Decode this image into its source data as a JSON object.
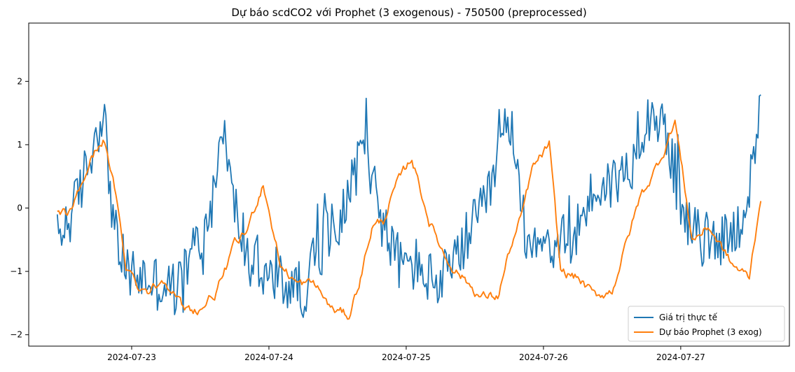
{
  "chart_data": {
    "type": "line",
    "title": "Dự báo scdCO2 với Prophet (3 exogenous) - 750500 (preprocessed)",
    "xlabel": "",
    "ylabel": "",
    "x_ticks": [
      "2024-07-23",
      "2024-07-24",
      "2024-07-25",
      "2024-07-26",
      "2024-07-27"
    ],
    "x_range": [
      "2024-07-22T11:00",
      "2024-07-27T14:00"
    ],
    "x_domain": [
      "2024-07-22T06:00",
      "2024-07-27T19:00"
    ],
    "y_ticks": [
      -2,
      -1,
      0,
      1,
      2
    ],
    "ylim": [
      -2.18,
      2.92
    ],
    "grid": false,
    "legend_position": "lower right",
    "series": [
      {
        "name": "Giá trị thực tế",
        "color": "#1f77b4",
        "noise_amplitude": 0.45,
        "x": [
          "2024-07-22T11:00",
          "2024-07-22T14:00",
          "2024-07-22T17:00",
          "2024-07-22T19:00",
          "2024-07-22T21:00",
          "2024-07-22T23:00",
          "2024-07-23T02:00",
          "2024-07-23T05:00",
          "2024-07-23T08:00",
          "2024-07-23T11:00",
          "2024-07-23T13:00",
          "2024-07-23T16:00",
          "2024-07-23T18:00",
          "2024-07-23T21:00",
          "2024-07-24T00:00",
          "2024-07-24T03:00",
          "2024-07-24T06:00",
          "2024-07-24T09:00",
          "2024-07-24T12:00",
          "2024-07-24T15:00",
          "2024-07-24T17:00",
          "2024-07-24T20:00",
          "2024-07-24T23:00",
          "2024-07-25T02:00",
          "2024-07-25T05:00",
          "2024-07-25T08:00",
          "2024-07-25T11:00",
          "2024-07-25T14:00",
          "2024-07-25T16:00",
          "2024-07-25T18:00",
          "2024-07-25T21:00",
          "2024-07-26T00:00",
          "2024-07-26T03:00",
          "2024-07-26T06:00",
          "2024-07-26T09:00",
          "2024-07-26T12:00",
          "2024-07-26T15:00",
          "2024-07-26T17:00",
          "2024-07-26T19:00",
          "2024-07-26T22:00",
          "2024-07-27T01:00",
          "2024-07-27T04:00",
          "2024-07-27T07:00",
          "2024-07-27T10:00",
          "2024-07-27T13:00",
          "2024-07-27T14:00"
        ],
        "y": [
          -0.5,
          0.0,
          0.9,
          1.6,
          -0.4,
          -1.0,
          -1.1,
          -1.2,
          -1.3,
          -0.6,
          -0.4,
          1.2,
          0.0,
          -0.9,
          -1.1,
          -1.2,
          -1.3,
          -0.6,
          -0.2,
          0.5,
          1.0,
          -0.3,
          -0.9,
          -0.9,
          -1.2,
          -1.0,
          -0.4,
          0.0,
          0.8,
          1.4,
          -0.4,
          -0.5,
          -0.6,
          -0.3,
          0.3,
          0.4,
          0.6,
          1.2,
          1.6,
          1.0,
          -0.3,
          -0.5,
          -0.5,
          -0.3,
          0.6,
          1.7
        ]
      },
      {
        "name": "Dự báo Prophet (3 exog)",
        "color": "#ff7f0e",
        "noise_amplitude": 0.06,
        "x": [
          "2024-07-22T11:00",
          "2024-07-22T13:00",
          "2024-07-22T15:00",
          "2024-07-22T17:00",
          "2024-07-22T19:00",
          "2024-07-22T21:00",
          "2024-07-22T23:00",
          "2024-07-23T01:00",
          "2024-07-23T03:00",
          "2024-07-23T06:00",
          "2024-07-23T09:00",
          "2024-07-23T12:00",
          "2024-07-23T15:00",
          "2024-07-23T18:00",
          "2024-07-23T20:00",
          "2024-07-23T23:00",
          "2024-07-24T02:00",
          "2024-07-24T05:00",
          "2024-07-24T08:00",
          "2024-07-24T11:00",
          "2024-07-24T14:00",
          "2024-07-24T16:00",
          "2024-07-24T18:00",
          "2024-07-24T20:00",
          "2024-07-24T22:00",
          "2024-07-25T01:00",
          "2024-07-25T04:00",
          "2024-07-25T07:00",
          "2024-07-25T10:00",
          "2024-07-25T13:00",
          "2024-07-25T16:00",
          "2024-07-25T18:00",
          "2024-07-25T20:00",
          "2024-07-25T22:00",
          "2024-07-26T01:00",
          "2024-07-26T03:00",
          "2024-07-26T06:00",
          "2024-07-26T09:00",
          "2024-07-26T12:00",
          "2024-07-26T14:00",
          "2024-07-26T17:00",
          "2024-07-26T19:00",
          "2024-07-26T21:00",
          "2024-07-26T23:00",
          "2024-07-27T02:00",
          "2024-07-27T05:00",
          "2024-07-27T09:00",
          "2024-07-27T12:00",
          "2024-07-27T14:00"
        ],
        "y": [
          -0.1,
          -0.1,
          0.3,
          0.8,
          1.1,
          0.3,
          -0.9,
          -1.2,
          -1.3,
          -1.1,
          -1.6,
          -1.6,
          -1.3,
          -0.6,
          -0.4,
          0.4,
          -0.9,
          -1.2,
          -1.2,
          -1.6,
          -1.7,
          -1.1,
          -0.3,
          -0.2,
          0.3,
          0.8,
          -0.2,
          -0.8,
          -1.1,
          -1.4,
          -1.4,
          -0.7,
          -0.2,
          0.6,
          1.0,
          -1.0,
          -1.1,
          -1.4,
          -1.3,
          -0.7,
          0.2,
          0.5,
          0.9,
          1.4,
          -0.5,
          -0.3,
          -0.9,
          -1.1,
          0.2
        ]
      }
    ]
  }
}
